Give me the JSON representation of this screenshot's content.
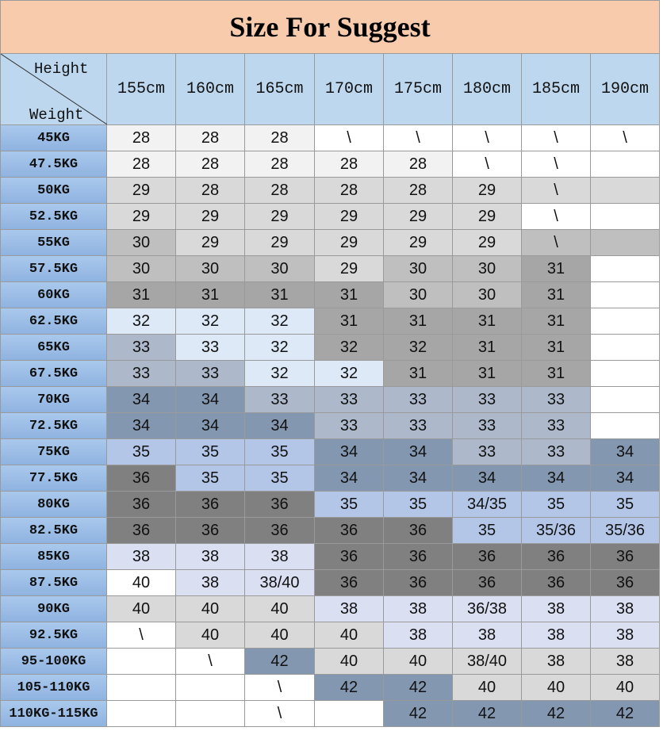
{
  "title": "Size For Suggest",
  "corner": {
    "top": "Height",
    "bottom": "Weight"
  },
  "columns": [
    "155cm",
    "160cm",
    "165cm",
    "170cm",
    "175cm",
    "180cm",
    "185cm",
    "190cm"
  ],
  "rows": [
    {
      "label": "45KG",
      "cells": [
        "28",
        "28",
        "28",
        "\\",
        "\\",
        "\\",
        "\\",
        "\\"
      ]
    },
    {
      "label": "47.5KG",
      "cells": [
        "28",
        "28",
        "28",
        "28",
        "28",
        "\\",
        "\\",
        null
      ]
    },
    {
      "label": "50KG",
      "cells": [
        "29",
        "28",
        "28",
        "28",
        "28",
        "29",
        "\\",
        null
      ]
    },
    {
      "label": "52.5KG",
      "cells": [
        "29",
        "29",
        "29",
        "29",
        "29",
        "29",
        "\\",
        null
      ]
    },
    {
      "label": "55KG",
      "cells": [
        "30",
        "29",
        "29",
        "29",
        "29",
        "29",
        "\\",
        null
      ]
    },
    {
      "label": "57.5KG",
      "cells": [
        "30",
        "30",
        "30",
        "29",
        "30",
        "30",
        "31",
        null
      ]
    },
    {
      "label": "60KG",
      "cells": [
        "31",
        "31",
        "31",
        "31",
        "30",
        "30",
        "31",
        null
      ]
    },
    {
      "label": "62.5KG",
      "cells": [
        "32",
        "32",
        "32",
        "31",
        "31",
        "31",
        "31",
        null
      ]
    },
    {
      "label": "65KG",
      "cells": [
        "33",
        "33",
        "32",
        "32",
        "32",
        "31",
        "31",
        null
      ]
    },
    {
      "label": "67.5KG",
      "cells": [
        "33",
        "33",
        "32",
        "32",
        "31",
        "31",
        "31",
        null
      ]
    },
    {
      "label": "70KG",
      "cells": [
        "34",
        "34",
        "33",
        "33",
        "33",
        "33",
        "33",
        null
      ]
    },
    {
      "label": "72.5KG",
      "cells": [
        "34",
        "34",
        "34",
        "33",
        "33",
        "33",
        "33",
        null
      ]
    },
    {
      "label": "75KG",
      "cells": [
        "35",
        "35",
        "35",
        "34",
        "34",
        "33",
        "33",
        "34"
      ]
    },
    {
      "label": "77.5KG",
      "cells": [
        "36",
        "35",
        "35",
        "34",
        "34",
        "34",
        "34",
        "34"
      ]
    },
    {
      "label": "80KG",
      "cells": [
        "36",
        "36",
        "36",
        "35",
        "35",
        "34/35",
        "35",
        "35"
      ]
    },
    {
      "label": "82.5KG",
      "cells": [
        "36",
        "36",
        "36",
        "36",
        "36",
        "35",
        "35/36",
        "35/36"
      ]
    },
    {
      "label": "85KG",
      "cells": [
        "38",
        "38",
        "38",
        "36",
        "36",
        "36",
        "36",
        "36"
      ]
    },
    {
      "label": "87.5KG",
      "cells": [
        "40",
        "38",
        "38/40",
        "36",
        "36",
        "36",
        "36",
        "36"
      ]
    },
    {
      "label": "90KG",
      "cells": [
        "40",
        "40",
        "40",
        "38",
        "38",
        "36/38",
        "38",
        "38"
      ]
    },
    {
      "label": "92.5KG",
      "cells": [
        "\\",
        "40",
        "40",
        "40",
        "38",
        "38",
        "38",
        "38"
      ]
    },
    {
      "label": "95-100KG",
      "cells": [
        null,
        "\\",
        "42",
        "40",
        "40",
        "38/40",
        "38",
        "38"
      ]
    },
    {
      "label": "105-110KG",
      "cells": [
        null,
        null,
        "\\",
        "42",
        "42",
        "40",
        "40",
        "40"
      ]
    },
    {
      "label": "110KG-115KG",
      "cells": [
        null,
        null,
        "\\",
        null,
        "42",
        "42",
        "42",
        "42"
      ]
    }
  ]
}
